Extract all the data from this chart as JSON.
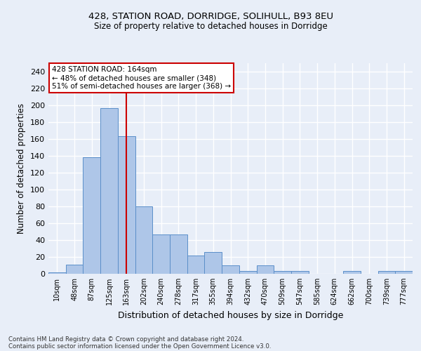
{
  "title1": "428, STATION ROAD, DORRIDGE, SOLIHULL, B93 8EU",
  "title2": "Size of property relative to detached houses in Dorridge",
  "xlabel": "Distribution of detached houses by size in Dorridge",
  "ylabel": "Number of detached properties",
  "categories": [
    "10sqm",
    "48sqm",
    "87sqm",
    "125sqm",
    "163sqm",
    "202sqm",
    "240sqm",
    "278sqm",
    "317sqm",
    "355sqm",
    "394sqm",
    "432sqm",
    "470sqm",
    "509sqm",
    "547sqm",
    "585sqm",
    "624sqm",
    "662sqm",
    "700sqm",
    "739sqm",
    "777sqm"
  ],
  "values": [
    2,
    11,
    138,
    197,
    163,
    80,
    47,
    47,
    22,
    26,
    10,
    3,
    10,
    3,
    3,
    0,
    0,
    3,
    0,
    3,
    3
  ],
  "bar_color": "#aec6e8",
  "bar_edge_color": "#5b8fc9",
  "property_line_x_label": "163sqm",
  "property_line_color": "#cc0000",
  "annotation_text": "428 STATION ROAD: 164sqm\n← 48% of detached houses are smaller (348)\n51% of semi-detached houses are larger (368) →",
  "annotation_box_color": "#ffffff",
  "annotation_box_edge_color": "#cc0000",
  "bg_color": "#e8eef8",
  "grid_color": "#ffffff",
  "footer1": "Contains HM Land Registry data © Crown copyright and database right 2024.",
  "footer2": "Contains public sector information licensed under the Open Government Licence v3.0.",
  "ylim": [
    0,
    250
  ],
  "yticks": [
    0,
    20,
    40,
    60,
    80,
    100,
    120,
    140,
    160,
    180,
    200,
    220,
    240
  ]
}
